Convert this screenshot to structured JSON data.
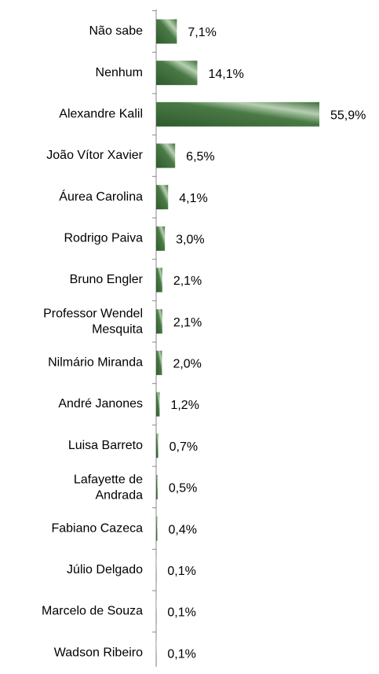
{
  "chart_data": {
    "type": "barh",
    "categories": [
      "Não sabe",
      "Nenhum",
      "Alexandre Kalil",
      "João Vítor Xavier",
      "Áurea Carolina",
      "Rodrigo Paiva",
      "Bruno Engler",
      "Professor Wendel Mesquita",
      "Nilmário Miranda",
      "André Janones",
      "Luisa Barreto",
      "Lafayette de Andrada",
      "Fabiano Cazeca",
      "Júlio Delgado",
      "Marcelo de Souza",
      "Wadson Ribeiro"
    ],
    "values": [
      7.1,
      14.1,
      55.9,
      6.5,
      4.1,
      3.0,
      2.1,
      2.1,
      2.0,
      1.2,
      0.7,
      0.5,
      0.4,
      0.1,
      0.1,
      0.1
    ],
    "value_labels": [
      "7,1%",
      "14,1%",
      "55,9%",
      "6,5%",
      "4,1%",
      "3,0%",
      "2,1%",
      "2,1%",
      "2,0%",
      "1,2%",
      "0,7%",
      "0,5%",
      "0,4%",
      "0,1%",
      "0,1%",
      "0,1%"
    ],
    "color": "#3f6e3c"
  }
}
